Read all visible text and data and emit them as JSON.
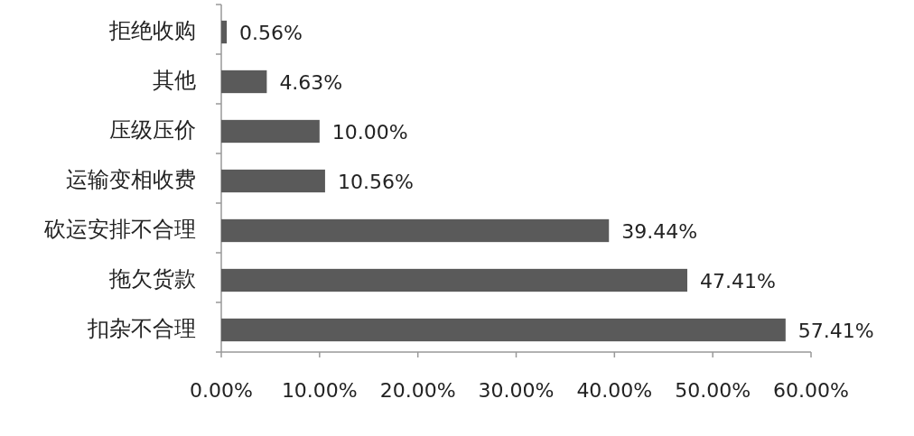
{
  "chart_data": {
    "type": "bar",
    "orientation": "horizontal",
    "categories": [
      "拒绝收购",
      "其他",
      "压级压价",
      "运输变相收费",
      "砍运安排不合理",
      "拖欠货款",
      "扣杂不合理"
    ],
    "values": [
      0.56,
      4.63,
      10,
      10.56,
      39.44,
      47.41,
      57.41
    ],
    "value_labels": [
      "0.56%",
      "4.63%",
      "10.00%",
      "10.56%",
      "39.44%",
      "47.41%",
      "57.41%"
    ],
    "color": "#5a5a5a",
    "xlim": [
      0,
      60
    ],
    "xticks": [
      {
        "value": 0,
        "label": "0.00%"
      },
      {
        "value": 10,
        "label": "10.00%"
      },
      {
        "value": 20,
        "label": "20.00%"
      },
      {
        "value": 30,
        "label": "30.00%"
      },
      {
        "value": 40,
        "label": "40.00%"
      },
      {
        "value": 50,
        "label": "50.00%"
      },
      {
        "value": 60,
        "label": "60.00%"
      }
    ],
    "grid": false
  }
}
